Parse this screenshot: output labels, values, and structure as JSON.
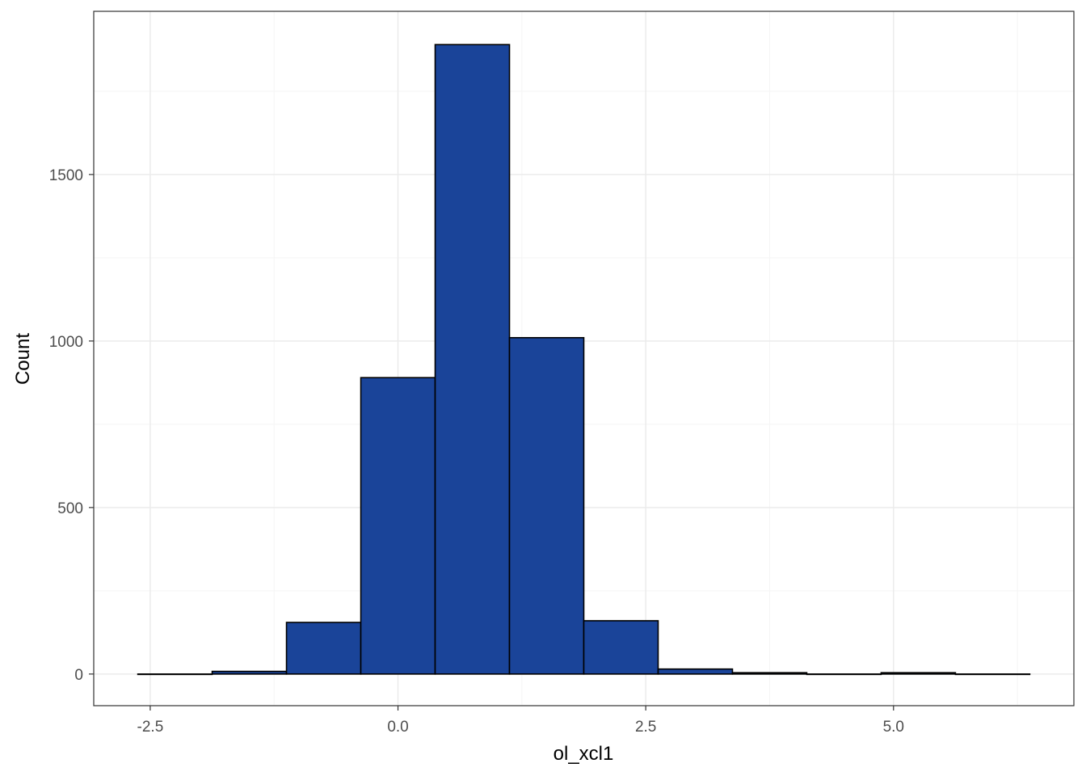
{
  "chart_data": {
    "type": "bar",
    "subtype": "histogram",
    "title": "",
    "xlabel": "ol_xcl1",
    "ylabel": "Count",
    "bin_width": 0.75,
    "bins": [
      {
        "x0": -2.625,
        "x1": -1.875,
        "count": 0
      },
      {
        "x0": -1.875,
        "x1": -1.125,
        "count": 8
      },
      {
        "x0": -1.125,
        "x1": -0.375,
        "count": 155
      },
      {
        "x0": -0.375,
        "x1": 0.375,
        "count": 890
      },
      {
        "x0": 0.375,
        "x1": 1.125,
        "count": 1890
      },
      {
        "x0": 1.125,
        "x1": 1.875,
        "count": 1010
      },
      {
        "x0": 1.875,
        "x1": 2.625,
        "count": 160
      },
      {
        "x0": 2.625,
        "x1": 3.375,
        "count": 15
      },
      {
        "x0": 3.375,
        "x1": 4.125,
        "count": 4
      },
      {
        "x0": 4.125,
        "x1": 4.875,
        "count": 0
      },
      {
        "x0": 4.875,
        "x1": 5.625,
        "count": 4
      },
      {
        "x0": 5.625,
        "x1": 6.375,
        "count": 0
      }
    ],
    "xlim": [
      -3.07,
      6.82
    ],
    "ylim": [
      -95,
      1990
    ],
    "x_ticks": [
      -2.5,
      0.0,
      2.5,
      5.0
    ],
    "x_tick_labels": [
      "-2.5",
      "0.0",
      "2.5",
      "5.0"
    ],
    "y_ticks": [
      0,
      500,
      1000,
      1500
    ],
    "y_tick_labels": [
      "0",
      "500",
      "1000",
      "1500"
    ],
    "grid": true,
    "legend": "none",
    "colors": {
      "bar_fill": "#1a4499",
      "bar_stroke": "#000000",
      "grid_major": "#ebebeb",
      "grid_minor": "#f5f5f5",
      "panel_border": "#333333",
      "tick_text": "#4d4d4d"
    }
  }
}
